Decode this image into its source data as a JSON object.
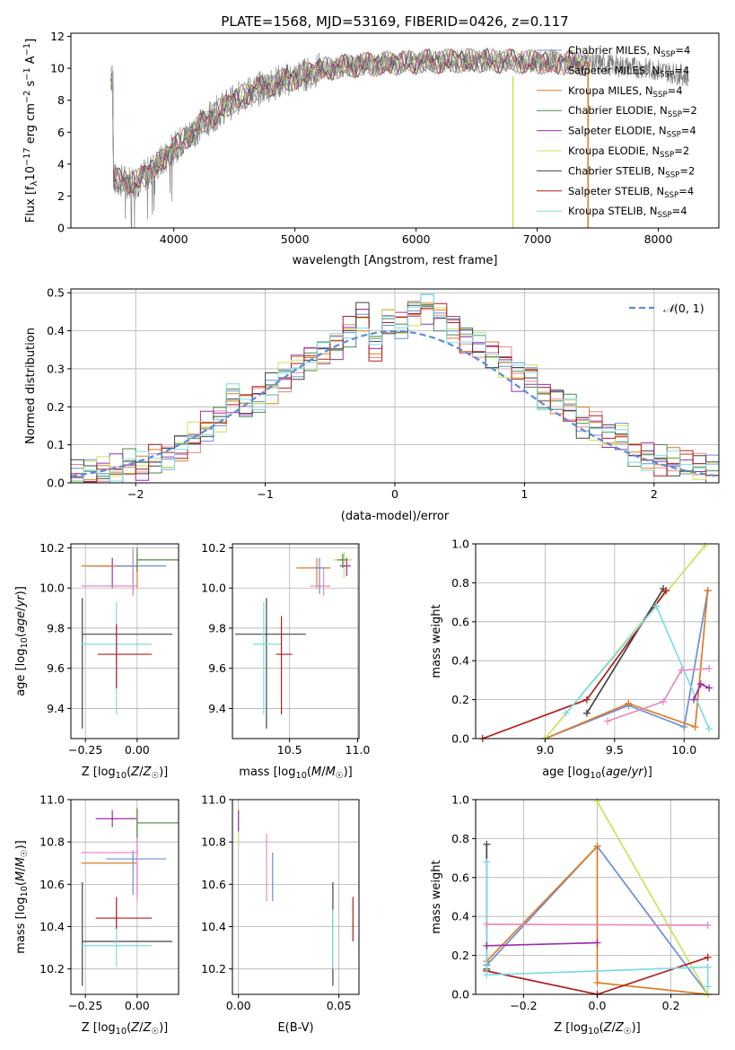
{
  "colors": {
    "Chabrier MILES": "#6a8fd8",
    "Salpeter MILES": "#e8838c",
    "Kroupa MILES": "#e07b25",
    "Chabrier ELODIE": "#4d8a4d",
    "Salpeter ELODIE": "#9a2ea8",
    "Kroupa ELODIE": "#c9e25a",
    "Chabrier STELIB": "#444444",
    "Salpeter STELIB": "#b01e1e",
    "Kroupa STELIB": "#7fdbe3",
    "data": "#808080",
    "normal": "#5b8bd6",
    "pink": "#e88ac6"
  },
  "chart_data": [
    {
      "type": "line",
      "title": "PLATE=1568, MJD=53169, FIBERID=0426, z=0.117",
      "xlabel": "wavelength [Angstrom, rest frame]",
      "ylabel": "Flux [f",
      "xlim": [
        3150,
        8500
      ],
      "ylim": [
        0,
        12.2
      ],
      "xticks": [
        "4000",
        "5000",
        "6000",
        "7000",
        "8000"
      ],
      "yticks": [
        "0",
        "2",
        "4",
        "6",
        "8",
        "10",
        "12"
      ],
      "legend_position": "right",
      "legend": [
        {
          "name": "Chabrier MILES",
          "nssp": "4"
        },
        {
          "name": "Salpeter MILES",
          "nssp": "4"
        },
        {
          "name": "Kroupa MILES",
          "nssp": "4"
        },
        {
          "name": "Chabrier ELODIE",
          "nssp": "2"
        },
        {
          "name": "Salpeter ELODIE",
          "nssp": "4"
        },
        {
          "name": "Kroupa ELODIE",
          "nssp": "2"
        },
        {
          "name": "Chabrier STELIB",
          "nssp": "2"
        },
        {
          "name": "Salpeter STELIB",
          "nssp": "4"
        },
        {
          "name": "Kroupa STELIB",
          "nssp": "4"
        }
      ],
      "continuum": [
        [
          3500,
          3.0
        ],
        [
          3700,
          2.9
        ],
        [
          3900,
          4.2
        ],
        [
          4000,
          5.0
        ],
        [
          4200,
          6.3
        ],
        [
          4400,
          7.5
        ],
        [
          4600,
          8.4
        ],
        [
          4800,
          9.0
        ],
        [
          5000,
          9.4
        ],
        [
          5200,
          9.9
        ],
        [
          5500,
          10.2
        ],
        [
          6000,
          10.4
        ],
        [
          6500,
          10.5
        ],
        [
          7000,
          10.4
        ],
        [
          7500,
          10.3
        ],
        [
          8000,
          9.9
        ],
        [
          8250,
          9.5
        ]
      ]
    },
    {
      "type": "line",
      "xlabel": "(data-model)/error",
      "ylabel": "Normed distribution",
      "xlim": [
        -2.5,
        2.5
      ],
      "ylim": [
        0,
        0.51
      ],
      "xticks": [
        "−2",
        "−1",
        "0",
        "1",
        "2"
      ],
      "yticks": [
        "0.0",
        "0.1",
        "0.2",
        "0.3",
        "0.4",
        "0.5"
      ],
      "legend": [
        {
          "name": "N(0,1)"
        }
      ],
      "bins": [
        -2.5,
        -2.4,
        -2.3,
        -2.2,
        -2.1,
        -2.0,
        -1.9,
        -1.8,
        -1.7,
        -1.6,
        -1.5,
        -1.4,
        -1.3,
        -1.2,
        -1.1,
        -1.0,
        -0.9,
        -0.8,
        -0.7,
        -0.6,
        -0.5,
        -0.4,
        -0.3,
        -0.2,
        -0.1,
        0.0,
        0.1,
        0.2,
        0.3,
        0.4,
        0.5,
        0.6,
        0.7,
        0.8,
        0.9,
        1.0,
        1.1,
        1.2,
        1.3,
        1.4,
        1.5,
        1.6,
        1.7,
        1.8,
        1.9,
        2.0,
        2.1,
        2.2,
        2.3,
        2.4
      ],
      "hist_base": [
        0.02,
        0.025,
        0.035,
        0.035,
        0.05,
        0.04,
        0.06,
        0.06,
        0.09,
        0.12,
        0.15,
        0.17,
        0.22,
        0.2,
        0.22,
        0.25,
        0.28,
        0.31,
        0.33,
        0.34,
        0.36,
        0.4,
        0.44,
        0.36,
        0.43,
        0.42,
        0.45,
        0.46,
        0.44,
        0.41,
        0.38,
        0.37,
        0.34,
        0.32,
        0.28,
        0.28,
        0.23,
        0.22,
        0.2,
        0.16,
        0.15,
        0.12,
        0.12,
        0.08,
        0.07,
        0.06,
        0.055,
        0.05,
        0.04,
        0.03
      ]
    },
    {
      "type": "scatter",
      "xlabel": "Z [log10(Z/Z☉)]",
      "ylabel": "age  [log10(age/yr)]",
      "xlim": [
        -0.32,
        0.2
      ],
      "ylim": [
        9.25,
        10.22
      ],
      "xticks": [
        "−0.25",
        "0.00"
      ],
      "yticks": [
        "9.4",
        "9.6",
        "9.8",
        "10.0",
        "10.2"
      ],
      "points": [
        {
          "x": -0.265,
          "y": 9.77,
          "xe": [
            -0.265,
            0.17
          ],
          "ye": [
            9.3,
            9.95
          ],
          "c": "#444444"
        },
        {
          "x": -0.1,
          "y": 9.72,
          "xe": [
            -0.27,
            0.07
          ],
          "ye": [
            9.37,
            9.93
          ],
          "c": "#7fdbe3"
        },
        {
          "x": -0.1,
          "y": 9.67,
          "xe": [
            -0.19,
            0.07
          ],
          "ye": [
            9.5,
            9.82
          ],
          "c": "#b01e1e"
        },
        {
          "x": -0.12,
          "y": 10.11,
          "xe": [
            -0.23,
            0.0
          ],
          "ye": [
            10.0,
            10.15
          ],
          "c": "#9a2ea8"
        },
        {
          "x": -0.02,
          "y": 10.14,
          "xe": [
            0.0,
            0.2
          ],
          "ye": [
            10.05,
            10.19
          ],
          "c": "#c9e25a"
        },
        {
          "x": 0.0,
          "y": 10.11,
          "xe": [
            -0.27,
            0.0
          ],
          "ye": [
            10.0,
            10.17
          ],
          "c": "#e07b25"
        },
        {
          "x": -0.02,
          "y": 10.11,
          "xe": [
            -0.1,
            0.14
          ],
          "ye": [
            9.97,
            10.17
          ],
          "c": "#6a8fd8"
        },
        {
          "x": -0.02,
          "y": 10.01,
          "xe": [
            -0.27,
            0.0
          ],
          "ye": [
            9.96,
            10.2
          ],
          "c": "#e88ac6"
        },
        {
          "x": 0.0,
          "y": 10.14,
          "xe": [
            0.0,
            0.2
          ],
          "ye": [
            10.08,
            10.2
          ],
          "c": "#4d8a4d"
        }
      ]
    },
    {
      "type": "scatter",
      "xlabel": "mass [log10(M/M☉)]",
      "xlim": [
        10.08,
        11.01
      ],
      "ylim": [
        9.25,
        10.22
      ],
      "xticks": [
        "10.5",
        "11.0"
      ],
      "yticks": [
        "9.4",
        "9.6",
        "9.8",
        "10.0",
        "10.2"
      ],
      "points": [
        {
          "x": 10.33,
          "y": 9.77,
          "xe": [
            10.1,
            10.62
          ],
          "ye": [
            9.3,
            9.95
          ],
          "c": "#444444"
        },
        {
          "x": 10.31,
          "y": 9.72,
          "xe": [
            10.23,
            10.44
          ],
          "ye": [
            9.37,
            9.93
          ],
          "c": "#7fdbe3"
        },
        {
          "x": 10.44,
          "y": 9.67,
          "xe": [
            10.4,
            10.52
          ],
          "ye": [
            9.37,
            9.86
          ],
          "c": "#b01e1e"
        },
        {
          "x": 10.7,
          "y": 10.1,
          "xe": [
            10.55,
            10.8
          ],
          "ye": [
            10.0,
            10.15
          ],
          "c": "#e07b25"
        },
        {
          "x": 10.75,
          "y": 10.01,
          "xe": [
            10.65,
            10.8
          ],
          "ye": [
            9.96,
            10.1
          ],
          "c": "#e88ac6"
        },
        {
          "x": 10.72,
          "y": 10.1,
          "xe": [
            10.68,
            10.76
          ],
          "ye": [
            9.97,
            10.15
          ],
          "c": "#6a8fd8"
        },
        {
          "x": 10.9,
          "y": 10.14,
          "xe": [
            10.82,
            10.96
          ],
          "ye": [
            10.05,
            10.18
          ],
          "c": "#c9e25a"
        },
        {
          "x": 10.92,
          "y": 10.11,
          "xe": [
            10.87,
            10.95
          ],
          "ye": [
            10.06,
            10.15
          ],
          "c": "#9a2ea8"
        },
        {
          "x": 10.89,
          "y": 10.14,
          "xe": [
            10.85,
            10.92
          ],
          "ye": [
            10.1,
            10.17
          ],
          "c": "#4d8a4d"
        }
      ]
    },
    {
      "type": "line",
      "xlabel": "age  [log10(age/yr)]",
      "ylabel": "mass weight",
      "xlim": [
        8.5,
        10.25
      ],
      "ylim": [
        0,
        1.0
      ],
      "xticks": [
        "9.0",
        "9.5",
        "10.0"
      ],
      "yticks": [
        "0.0",
        "0.2",
        "0.4",
        "0.6",
        "0.8",
        "1.0"
      ],
      "series": [
        {
          "c": "#6a8fd8",
          "pts": [
            [
              9.0,
              0.0
            ],
            [
              9.6,
              0.17
            ],
            [
              10.0,
              0.06
            ],
            [
              10.17,
              0.76
            ]
          ]
        },
        {
          "c": "#e07b25",
          "pts": [
            [
              9.0,
              0.0
            ],
            [
              9.6,
              0.18
            ],
            [
              10.08,
              0.06
            ],
            [
              10.17,
              0.76
            ]
          ]
        },
        {
          "c": "#c9e25a",
          "pts": [
            [
              9.0,
              0.0
            ],
            [
              10.15,
              0.99
            ]
          ]
        },
        {
          "c": "#444444",
          "pts": [
            [
              9.3,
              0.13
            ],
            [
              9.85,
              0.77
            ]
          ]
        },
        {
          "c": "#b01e1e",
          "pts": [
            [
              8.55,
              0.0
            ],
            [
              9.3,
              0.2
            ],
            [
              9.87,
              0.76
            ]
          ]
        },
        {
          "c": "#7fdbe3",
          "pts": [
            [
              9.15,
              0.13
            ],
            [
              9.8,
              0.68
            ],
            [
              10.18,
              0.05
            ]
          ]
        },
        {
          "c": "#e88ac6",
          "pts": [
            [
              9.45,
              0.09
            ],
            [
              9.85,
              0.19
            ],
            [
              9.98,
              0.35
            ],
            [
              10.18,
              0.36
            ]
          ]
        },
        {
          "c": "#9a2ea8",
          "pts": [
            [
              10.07,
              0.2
            ],
            [
              10.12,
              0.28
            ],
            [
              10.18,
              0.26
            ]
          ]
        }
      ]
    },
    {
      "type": "scatter",
      "xlabel": "Z [log10(Z/Z☉)]",
      "ylabel": "mass [log10(M/M☉)]",
      "xlim": [
        -0.32,
        0.2
      ],
      "ylim": [
        10.08,
        11.0
      ],
      "xticks": [
        "−0.25",
        "0.00"
      ],
      "yticks": [
        "10.2",
        "10.4",
        "10.6",
        "10.8",
        "11.0"
      ],
      "points": [
        {
          "x": -0.265,
          "y": 10.33,
          "xe": [
            -0.265,
            0.17
          ],
          "ye": [
            10.12,
            10.61
          ],
          "c": "#444444"
        },
        {
          "x": -0.1,
          "y": 10.31,
          "xe": [
            -0.27,
            0.07
          ],
          "ye": [
            10.21,
            10.48
          ],
          "c": "#7fdbe3"
        },
        {
          "x": -0.1,
          "y": 10.44,
          "xe": [
            -0.2,
            0.07
          ],
          "ye": [
            10.39,
            10.54
          ],
          "c": "#b01e1e"
        },
        {
          "x": -0.12,
          "y": 10.91,
          "xe": [
            -0.2,
            0.0
          ],
          "ye": [
            10.87,
            10.95
          ],
          "c": "#9a2ea8"
        },
        {
          "x": 0.0,
          "y": 10.89,
          "xe": [
            0.0,
            0.2
          ],
          "ye": [
            10.86,
            10.96
          ],
          "c": "#c9e25a"
        },
        {
          "x": 0.0,
          "y": 10.7,
          "xe": [
            -0.27,
            0.0
          ],
          "ye": [
            10.55,
            10.95
          ],
          "c": "#e07b25"
        },
        {
          "x": -0.02,
          "y": 10.72,
          "xe": [
            -0.15,
            0.14
          ],
          "ye": [
            10.55,
            10.76
          ],
          "c": "#6a8fd8"
        },
        {
          "x": 0.0,
          "y": 10.75,
          "xe": [
            -0.27,
            0.0
          ],
          "ye": [
            10.52,
            10.83
          ],
          "c": "#e88ac6"
        },
        {
          "x": 0.0,
          "y": 10.89,
          "xe": [
            0.0,
            0.2
          ],
          "ye": [
            10.82,
            10.96
          ],
          "c": "#4d8a4d"
        }
      ]
    },
    {
      "type": "scatter",
      "xlabel": "E(B-V)",
      "xlim": [
        -0.003,
        0.06
      ],
      "ylim": [
        10.08,
        11.0
      ],
      "xticks": [
        "0.00",
        "0.05"
      ],
      "yticks": [
        "10.2",
        "10.4",
        "10.6",
        "10.8",
        "11.0"
      ],
      "points": [
        {
          "x": 0.047,
          "y": 10.33,
          "ye": [
            10.12,
            10.61
          ],
          "c": "#444444"
        },
        {
          "x": 0.047,
          "y": 10.31,
          "ye": [
            10.2,
            10.48
          ],
          "c": "#7fdbe3"
        },
        {
          "x": 0.057,
          "y": 10.44,
          "ye": [
            10.33,
            10.54
          ],
          "c": "#b01e1e"
        },
        {
          "x": 0.014,
          "y": 10.75,
          "ye": [
            10.52,
            10.84
          ],
          "c": "#e88ac6"
        },
        {
          "x": 0.017,
          "y": 10.72,
          "ye": [
            10.52,
            10.75
          ],
          "c": "#6a8fd8"
        },
        {
          "x": 0.0,
          "y": 10.89,
          "ye": [
            10.78,
            10.96
          ],
          "c": "#c9e25a"
        },
        {
          "x": 0.0,
          "y": 10.91,
          "ye": [
            10.85,
            10.95
          ],
          "c": "#9a2ea8"
        }
      ]
    },
    {
      "type": "line",
      "xlabel": "Z [log10(Z/Z☉)]",
      "ylabel": "mass weight",
      "xlim": [
        -0.33,
        0.33
      ],
      "ylim": [
        0,
        1.0
      ],
      "xticks": [
        "−0.2",
        "0.0",
        "0.2"
      ],
      "yticks": [
        "0.0",
        "0.2",
        "0.4",
        "0.6",
        "0.8",
        "1.0"
      ],
      "series": [
        {
          "c": "#6a8fd8",
          "pts": [
            [
              -0.3,
              0.15
            ],
            [
              0.0,
              0.76
            ],
            [
              0.3,
              0.0
            ]
          ]
        },
        {
          "c": "#e07b25",
          "pts": [
            [
              -0.3,
              0.17
            ],
            [
              0.0,
              0.76
            ],
            [
              0.0,
              0.06
            ],
            [
              0.3,
              0.0
            ]
          ]
        },
        {
          "c": "#c9e25a",
          "pts": [
            [
              0.0,
              0.99
            ],
            [
              0.3,
              0.0
            ]
          ]
        },
        {
          "c": "#444444",
          "pts": [
            [
              -0.3,
              0.77
            ],
            [
              -0.3,
              0.13
            ]
          ]
        },
        {
          "c": "#b01e1e",
          "pts": [
            [
              -0.3,
              0.12
            ],
            [
              0.0,
              0.0
            ],
            [
              0.3,
              0.19
            ]
          ]
        },
        {
          "c": "#7fdbe3",
          "pts": [
            [
              -0.3,
              0.68
            ],
            [
              -0.3,
              0.1
            ],
            [
              0.3,
              0.14
            ],
            [
              0.3,
              0.04
            ]
          ]
        },
        {
          "c": "#e88ac6",
          "pts": [
            [
              -0.3,
              0.36
            ],
            [
              0.3,
              0.355
            ]
          ]
        },
        {
          "c": "#9a2ea8",
          "pts": [
            [
              -0.3,
              0.25
            ],
            [
              0.0,
              0.265
            ]
          ]
        }
      ]
    }
  ]
}
